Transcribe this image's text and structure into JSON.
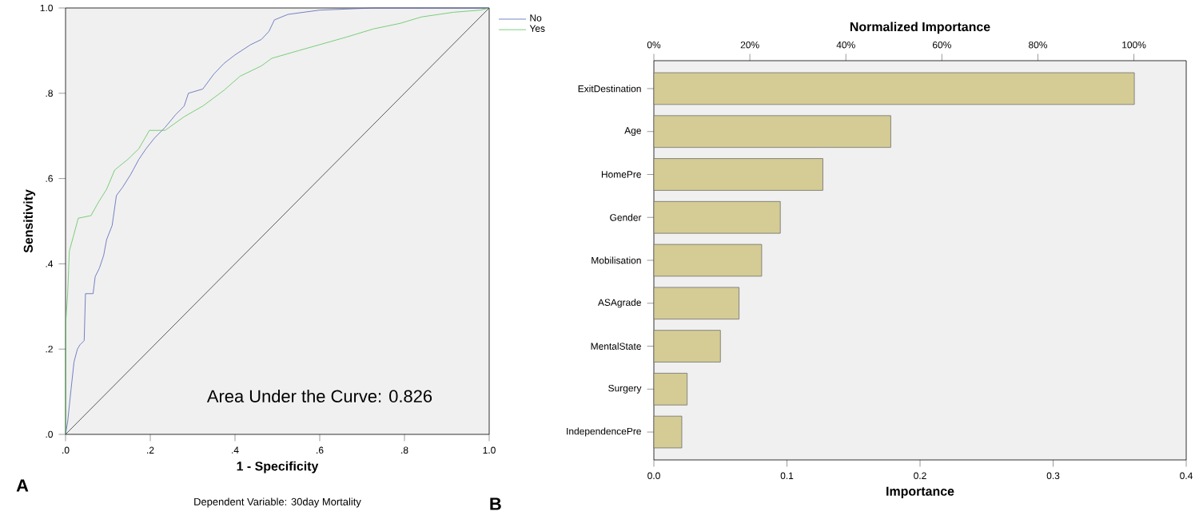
{
  "chart_data": [
    {
      "type": "line",
      "xlabel": "1 - Specificity",
      "ylabel": "Sensitivity",
      "xlim": [
        0,
        1
      ],
      "ylim": [
        0,
        1
      ],
      "xticks": [
        {
          "value": 0,
          "label": ".0"
        },
        {
          "value": 0.2,
          "label": ".2"
        },
        {
          "value": 0.4,
          "label": ".4"
        },
        {
          "value": 0.6,
          "label": ".6"
        },
        {
          "value": 0.8,
          "label": ".8"
        },
        {
          "value": 1,
          "label": "1.0"
        }
      ],
      "yticks": [
        {
          "value": 0,
          "label": ".0"
        },
        {
          "value": 0.2,
          "label": ".2"
        },
        {
          "value": 0.4,
          "label": ".4"
        },
        {
          "value": 0.6,
          "label": ".6"
        },
        {
          "value": 0.8,
          "label": ".8"
        },
        {
          "value": 1,
          "label": "1.0"
        }
      ],
      "legend": "top right",
      "marker": "none",
      "series": [
        {
          "name": "No",
          "color": "#5465b8",
          "x": [
            0,
            0.005,
            0.013,
            0.02,
            0.028,
            0.034,
            0.044,
            0.047,
            0.065,
            0.07,
            0.08,
            0.09,
            0.097,
            0.11,
            0.12,
            0.135,
            0.154,
            0.173,
            0.19,
            0.21,
            0.235,
            0.26,
            0.28,
            0.29,
            0.324,
            0.35,
            0.374,
            0.4,
            0.437,
            0.462,
            0.48,
            0.493,
            0.525,
            0.6,
            0.727,
            1
          ],
          "values": [
            0,
            0.03,
            0.106,
            0.17,
            0.2,
            0.21,
            0.22,
            0.33,
            0.33,
            0.37,
            0.39,
            0.42,
            0.457,
            0.49,
            0.56,
            0.58,
            0.61,
            0.645,
            0.67,
            0.695,
            0.72,
            0.75,
            0.77,
            0.8,
            0.81,
            0.845,
            0.87,
            0.89,
            0.914,
            0.926,
            0.945,
            0.972,
            0.985,
            0.995,
            1,
            1
          ]
        },
        {
          "name": "Yes",
          "color": "#5cc45c",
          "x": [
            0,
            0.001,
            0.005,
            0.009,
            0.02,
            0.03,
            0.06,
            0.078,
            0.097,
            0.116,
            0.147,
            0.173,
            0.198,
            0.235,
            0.28,
            0.324,
            0.374,
            0.412,
            0.462,
            0.487,
            0.55,
            0.6,
            0.664,
            0.727,
            0.79,
            0.84,
            0.916,
            0.98,
            1
          ],
          "values": [
            0,
            0.27,
            0.33,
            0.43,
            0.47,
            0.507,
            0.513,
            0.545,
            0.575,
            0.62,
            0.645,
            0.67,
            0.713,
            0.713,
            0.745,
            0.77,
            0.807,
            0.84,
            0.864,
            0.882,
            0.9,
            0.914,
            0.932,
            0.951,
            0.964,
            0.979,
            0.99,
            0.995,
            1
          ]
        },
        {
          "color": "#333333",
          "x": [
            0,
            1
          ],
          "values": [
            0,
            1
          ]
        }
      ],
      "annotations": [
        "Area Under the Curve: 0.826",
        "Dependent Variable: 30day Mortality",
        "A"
      ]
    },
    {
      "type": "bar",
      "orientation": "horizontal",
      "xlabel": "Importance",
      "x2label": "Normalized Importance",
      "categories": [
        "ExitDestination",
        "Age",
        "HomePre",
        "Gender",
        "Mobilisation",
        "ASAgrade",
        "MentalState",
        "Surgery",
        "IndependencePre"
      ],
      "values": [
        0.361,
        0.178,
        0.127,
        0.095,
        0.081,
        0.064,
        0.05,
        0.025,
        0.021
      ],
      "color": "#d4cc94",
      "xlim": [
        0,
        0.4
      ],
      "xticks": [
        {
          "value": 0,
          "label": "0.0"
        },
        0.1,
        0.2,
        0.3,
        0.4
      ],
      "x2lim": [
        0,
        110.9
      ],
      "x2ticks": [
        {
          "value": 0,
          "label": "0%"
        },
        {
          "value": 20,
          "label": "20%"
        },
        {
          "value": 40,
          "label": "40%"
        },
        {
          "value": 60,
          "label": "60%"
        },
        {
          "value": 80,
          "label": "80%"
        },
        {
          "value": 100,
          "label": "100%"
        }
      ],
      "annotations": [
        "B"
      ]
    }
  ]
}
